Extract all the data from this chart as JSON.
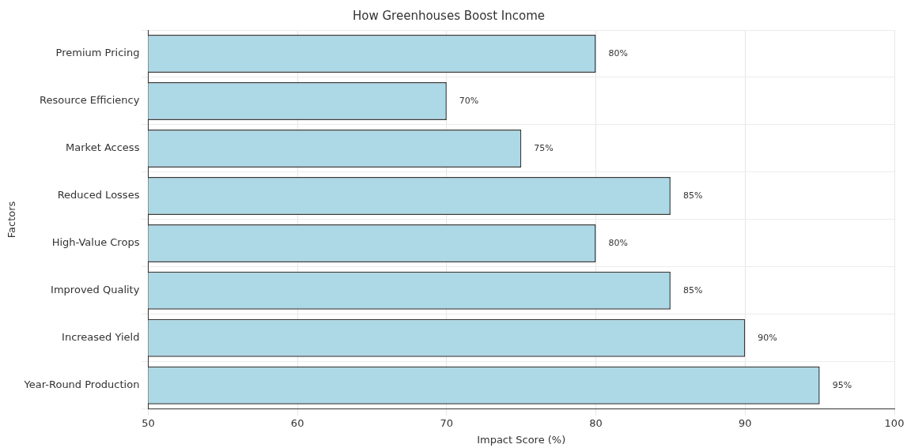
{
  "chart_data": {
    "type": "bar",
    "orientation": "horizontal",
    "title": "How Greenhouses Boost Income",
    "xlabel": "Impact Score (%)",
    "ylabel": "Factors",
    "categories": [
      "Premium Pricing",
      "Resource Efficiency",
      "Market Access",
      "Reduced Losses",
      "High-Value Crops",
      "Improved Quality",
      "Increased Yield",
      "Year-Round Production"
    ],
    "values": [
      80,
      70,
      75,
      85,
      80,
      85,
      90,
      95
    ],
    "value_labels": [
      "80%",
      "70%",
      "75%",
      "85%",
      "80%",
      "85%",
      "90%",
      "95%"
    ],
    "color": "#add8e6",
    "xlim": [
      50,
      100
    ],
    "xticks": [
      50,
      60,
      70,
      80,
      90,
      100
    ],
    "grid": true,
    "legend": false
  }
}
